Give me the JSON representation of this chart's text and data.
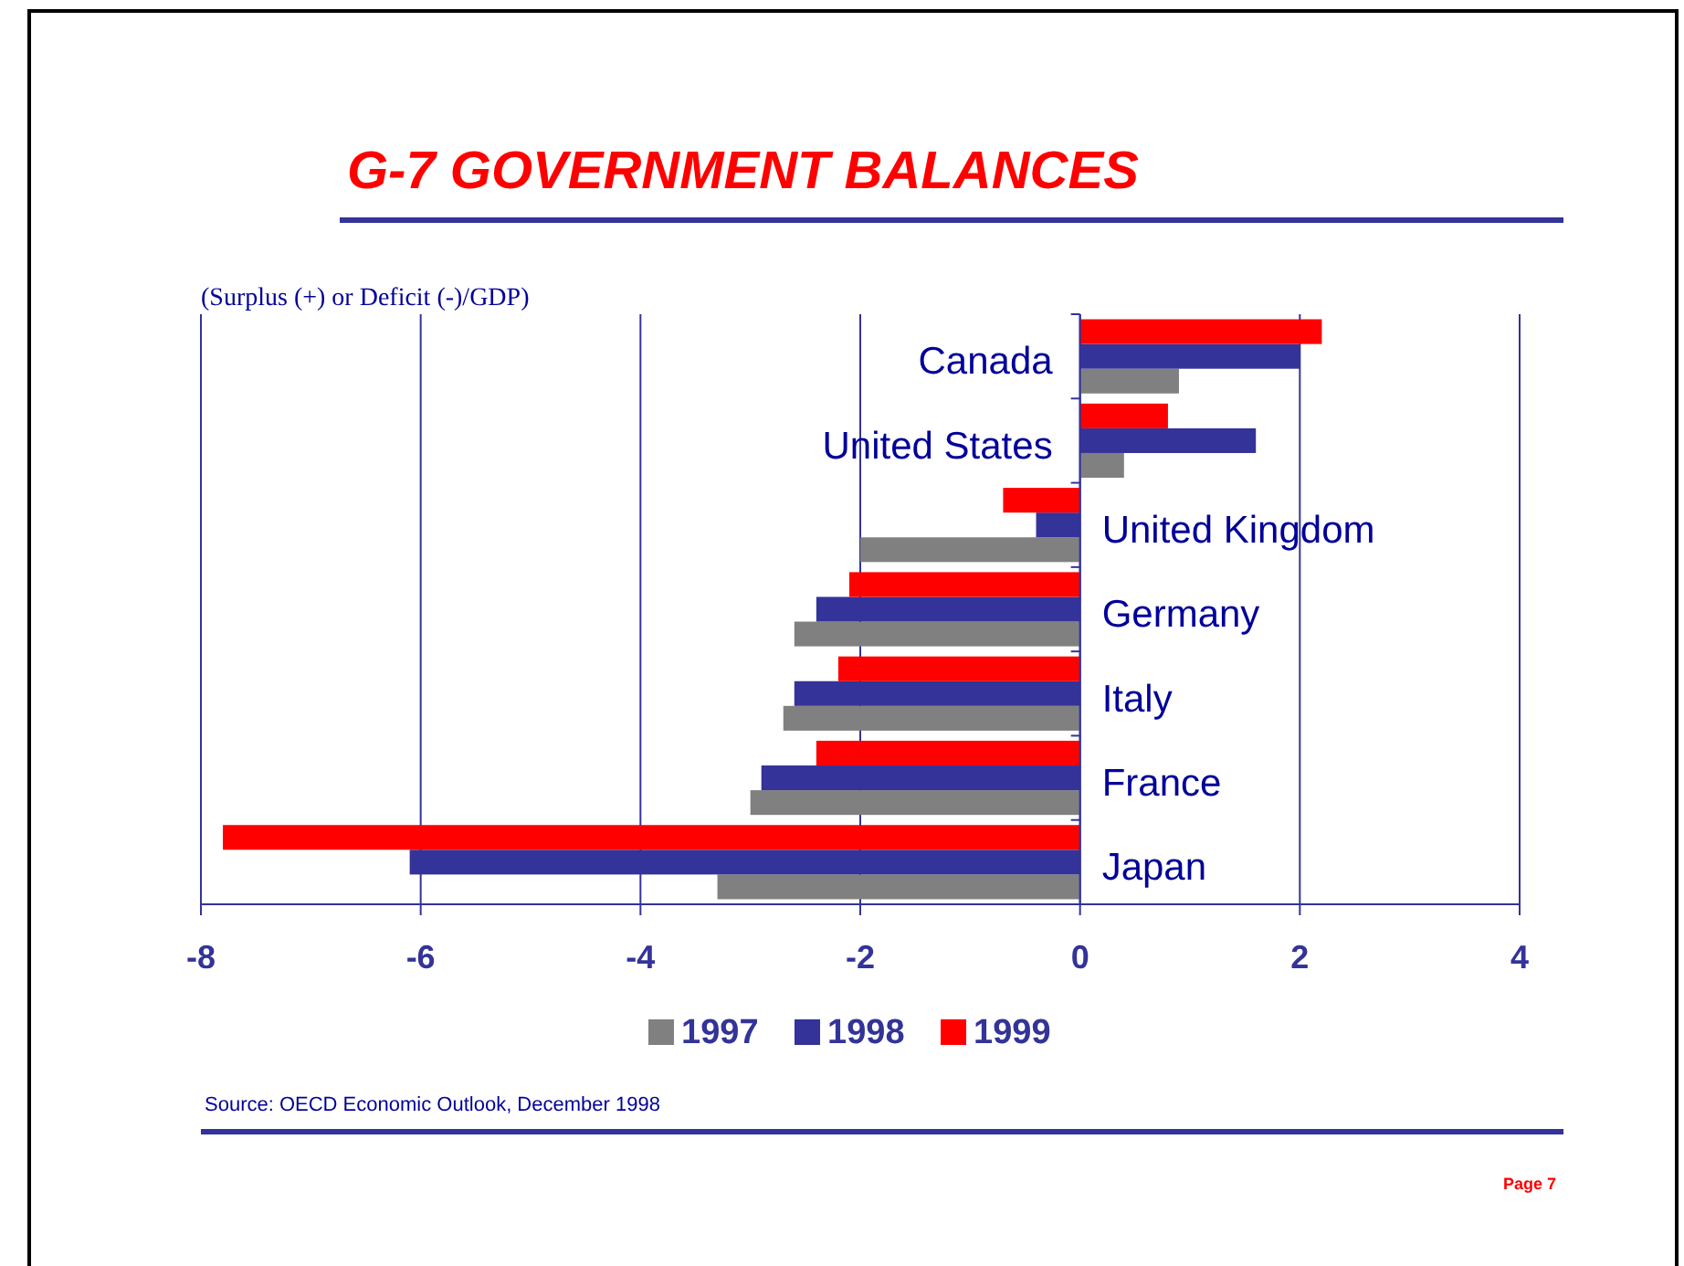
{
  "chart_data": {
    "type": "bar",
    "orientation": "horizontal",
    "title": "G-7 GOVERNMENT BALANCES",
    "xlabel": "(Surplus (+) or Deficit (-)/GDP)",
    "categories": [
      "Canada",
      "United States",
      "United Kingdom",
      "Germany",
      "Italy",
      "France",
      "Japan"
    ],
    "series": [
      {
        "name": "1997",
        "color": "#808080",
        "values": [
          0.9,
          0.4,
          -2.0,
          -2.6,
          -2.7,
          -3.0,
          -3.3
        ]
      },
      {
        "name": "1998",
        "color": "#333399",
        "values": [
          2.0,
          1.6,
          -0.4,
          -2.4,
          -2.6,
          -2.9,
          -6.1
        ]
      },
      {
        "name": "1999",
        "color": "#ff0000",
        "values": [
          2.2,
          0.8,
          -0.7,
          -2.1,
          -2.2,
          -2.4,
          -7.8
        ]
      }
    ],
    "xlim": [
      -8,
      4
    ],
    "xticks": [
      -8,
      -6,
      -4,
      -2,
      0,
      2,
      4
    ],
    "grid": "x",
    "legend": "bottom",
    "annotations": [
      "Source: OECD Economic Outlook, December 1998",
      "Page 7"
    ]
  }
}
